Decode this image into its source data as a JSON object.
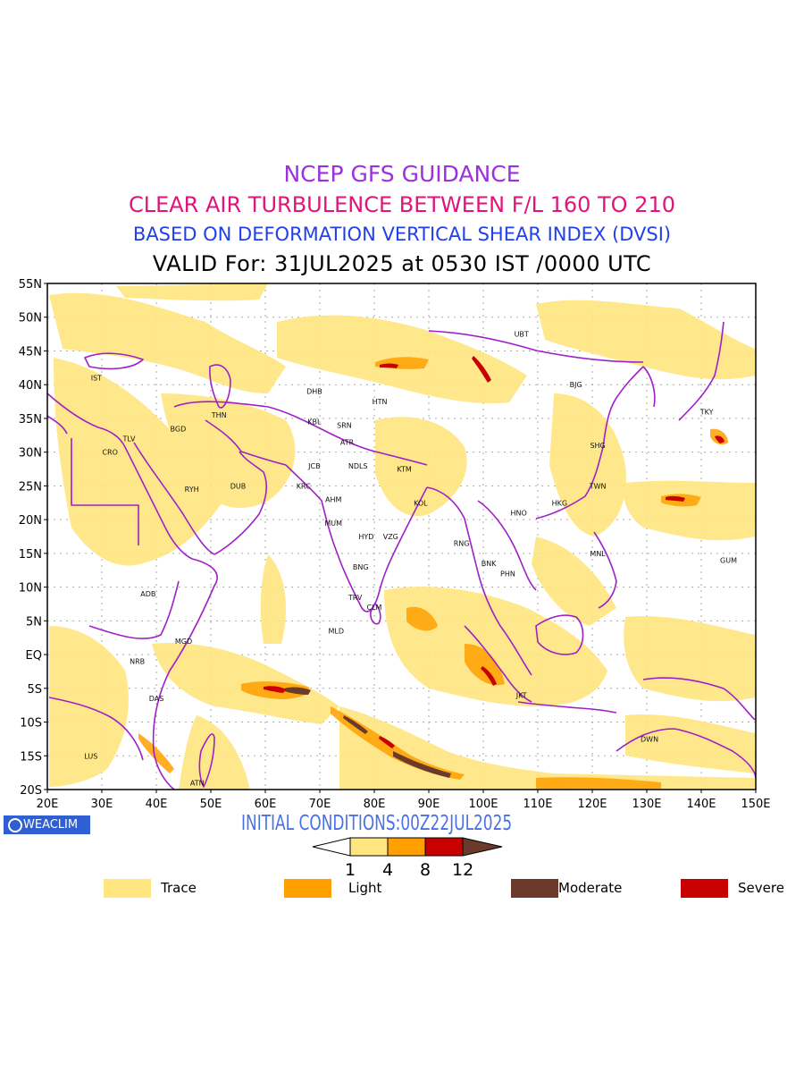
{
  "titles": {
    "line1": "NCEP GFS GUIDANCE",
    "line2": "CLEAR AIR TURBULENCE BETWEEN F/L 160 TO 210",
    "line3": "BASED ON DEFORMATION VERTICAL SHEAR INDEX (DVSI)",
    "line4": "VALID For: 31JUL2025 at 0530 IST /0000 UTC"
  },
  "colors": {
    "line1": "#9b30e0",
    "line2": "#e0157a",
    "line3": "#2240e8",
    "line4": "#000000",
    "init": "#4a70e6",
    "coast": "#a020c8",
    "trace": "#ffe680",
    "light": "#ffa000",
    "moderate": "#6b3a2a",
    "severe": "#c80000",
    "grid": "#aaaaaa"
  },
  "map": {
    "lat_labels": [
      "55N",
      "50N",
      "45N",
      "40N",
      "35N",
      "30N",
      "25N",
      "20N",
      "15N",
      "10N",
      "5N",
      "EQ",
      "5S",
      "10S",
      "15S",
      "20S"
    ],
    "lon_labels": [
      "20E",
      "30E",
      "40E",
      "50E",
      "60E",
      "70E",
      "80E",
      "90E",
      "100E",
      "110E",
      "120E",
      "130E",
      "140E",
      "150E"
    ],
    "stations": [
      {
        "id": "IST",
        "lon": 29,
        "lat": 41
      },
      {
        "id": "TLV",
        "lon": 35,
        "lat": 32
      },
      {
        "id": "CRO",
        "lon": 31.5,
        "lat": 30
      },
      {
        "id": "BGD",
        "lon": 44,
        "lat": 33.5
      },
      {
        "id": "THN",
        "lon": 51.5,
        "lat": 35.5
      },
      {
        "id": "RYH",
        "lon": 46.5,
        "lat": 24.5
      },
      {
        "id": "DUB",
        "lon": 55,
        "lat": 25
      },
      {
        "id": "ADB",
        "lon": 38.5,
        "lat": 9
      },
      {
        "id": "MGD",
        "lon": 45,
        "lat": 2
      },
      {
        "id": "NRB",
        "lon": 36.5,
        "lat": -1
      },
      {
        "id": "DAS",
        "lon": 40,
        "lat": -6.5
      },
      {
        "id": "LUS",
        "lon": 28,
        "lat": -15
      },
      {
        "id": "ATN",
        "lon": 47.5,
        "lat": -19
      },
      {
        "id": "DHB",
        "lon": 69,
        "lat": 39
      },
      {
        "id": "KBL",
        "lon": 69,
        "lat": 34.5
      },
      {
        "id": "SRN",
        "lon": 74.5,
        "lat": 34
      },
      {
        "id": "ATR",
        "lon": 75,
        "lat": 31.5
      },
      {
        "id": "JCB",
        "lon": 69,
        "lat": 28
      },
      {
        "id": "KRC",
        "lon": 67,
        "lat": 25
      },
      {
        "id": "AHM",
        "lon": 72.5,
        "lat": 23
      },
      {
        "id": "MUM",
        "lon": 72.5,
        "lat": 19.5
      },
      {
        "id": "NDLS",
        "lon": 77,
        "lat": 28
      },
      {
        "id": "HTN",
        "lon": 81,
        "lat": 37.5
      },
      {
        "id": "KTM",
        "lon": 85.5,
        "lat": 27.5
      },
      {
        "id": "KOL",
        "lon": 88.5,
        "lat": 22.5
      },
      {
        "id": "HYD",
        "lon": 78.5,
        "lat": 17.5
      },
      {
        "id": "VZG",
        "lon": 83,
        "lat": 17.5
      },
      {
        "id": "BNG",
        "lon": 77.5,
        "lat": 13
      },
      {
        "id": "TRV",
        "lon": 76.5,
        "lat": 8.5
      },
      {
        "id": "CLM",
        "lon": 80,
        "lat": 7
      },
      {
        "id": "MLD",
        "lon": 73,
        "lat": 3.5
      },
      {
        "id": "RNG",
        "lon": 96,
        "lat": 16.5
      },
      {
        "id": "BNK",
        "lon": 101,
        "lat": 13.5
      },
      {
        "id": "PHN",
        "lon": 104.5,
        "lat": 12
      },
      {
        "id": "HNO",
        "lon": 106.5,
        "lat": 21
      },
      {
        "id": "HKG",
        "lon": 114,
        "lat": 22.5
      },
      {
        "id": "TWN",
        "lon": 121,
        "lat": 25
      },
      {
        "id": "SHG",
        "lon": 121,
        "lat": 31
      },
      {
        "id": "BJG",
        "lon": 117,
        "lat": 40
      },
      {
        "id": "UBT",
        "lon": 107,
        "lat": 47.5
      },
      {
        "id": "TKY",
        "lon": 141,
        "lat": 36
      },
      {
        "id": "MNL",
        "lon": 121,
        "lat": 15
      },
      {
        "id": "GUM",
        "lon": 145,
        "lat": 14
      },
      {
        "id": "JKT",
        "lon": 107,
        "lat": -6
      },
      {
        "id": "DWN",
        "lon": 130.5,
        "lat": -12.5
      }
    ]
  },
  "initial_conditions": "INITIAL CONDITIONS:00Z22JUL2025",
  "logo": {
    "text": "WEACLIM"
  },
  "colorbar": {
    "labels": [
      "1",
      "4",
      "8",
      "12"
    ]
  },
  "legend": {
    "items": [
      {
        "label": "Trace",
        "color": "#ffe680"
      },
      {
        "label": "Light",
        "color": "#ffa000"
      },
      {
        "label": "Moderate",
        "color": "#6b3a2a"
      },
      {
        "label": "Severe",
        "color": "#c80000"
      }
    ]
  }
}
